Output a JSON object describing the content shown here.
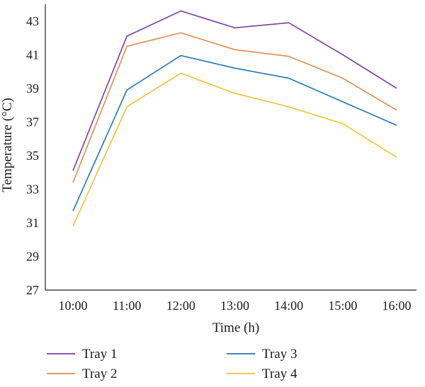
{
  "chart_data": {
    "type": "line",
    "categories": [
      "10:00",
      "11:00",
      "12:00",
      "13:00",
      "14:00",
      "15:00",
      "16:00"
    ],
    "series": [
      {
        "name": "Tray 1",
        "color": "#7b3fa0",
        "values": [
          34.1,
          42.1,
          43.6,
          42.6,
          42.9,
          41.0,
          39.0
        ]
      },
      {
        "name": "Tray 2",
        "color": "#e08a4e",
        "values": [
          33.4,
          41.5,
          42.3,
          41.3,
          40.9,
          39.6,
          37.7
        ]
      },
      {
        "name": "Tray 3",
        "color": "#1f77b4",
        "values": [
          31.7,
          38.9,
          40.95,
          40.2,
          39.6,
          38.2,
          36.8
        ]
      },
      {
        "name": "Tray 4",
        "color": "#f2c12e",
        "values": [
          30.8,
          37.9,
          39.9,
          38.7,
          37.9,
          36.9,
          34.9
        ]
      }
    ],
    "xlabel": "Time (h)",
    "ylabel": "Temperature (°C)",
    "ylim": [
      27,
      44
    ],
    "yticks": [
      27,
      29,
      31,
      33,
      35,
      37,
      39,
      41,
      43
    ],
    "grid": false,
    "legend_position": "bottom"
  }
}
